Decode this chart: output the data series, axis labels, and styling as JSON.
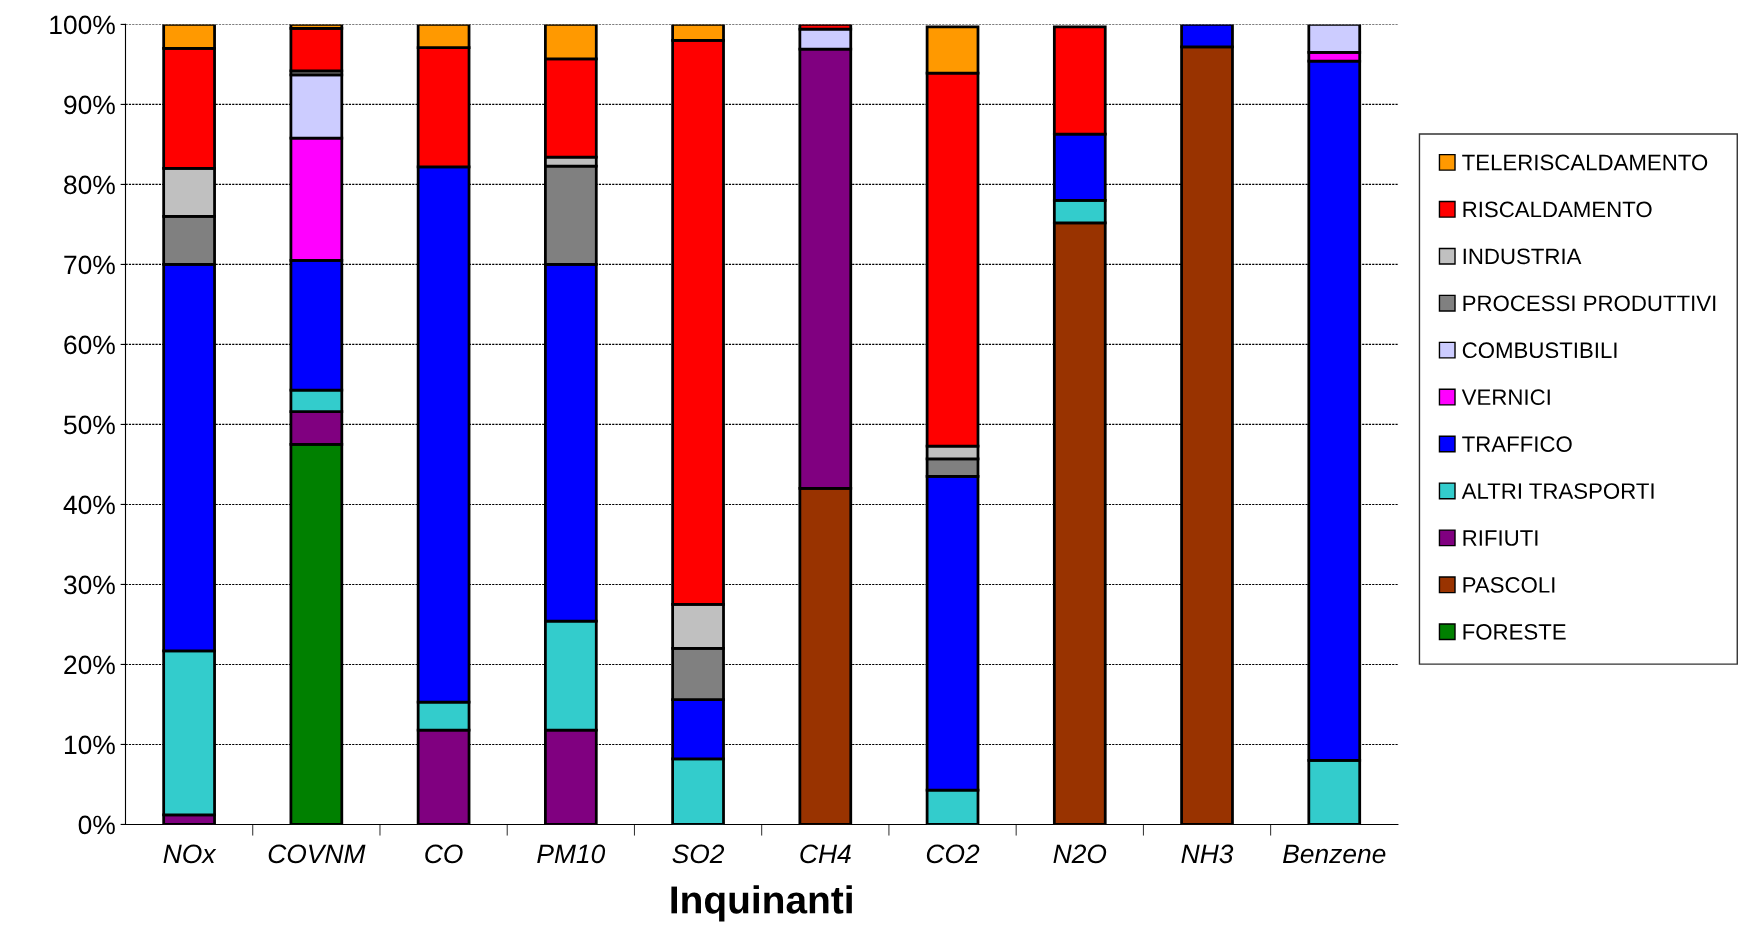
{
  "chart_data": {
    "type": "bar",
    "stacked": true,
    "xlabel": "Inquinanti",
    "categories": [
      "NOx",
      "COVNM",
      "CO",
      "PM10",
      "SO2",
      "CH4",
      "CO2",
      "N2O",
      "NH3",
      "Benzene"
    ],
    "series": [
      {
        "name": "FORESTE",
        "color": "#008000",
        "values": [
          0,
          47.5,
          0,
          0,
          0,
          0,
          0,
          0,
          0,
          0
        ]
      },
      {
        "name": "PASCOLI",
        "color": "#993300",
        "values": [
          0,
          0,
          0,
          0,
          0,
          42,
          0,
          75.2,
          97.2,
          0
        ]
      },
      {
        "name": "RIFIUTI",
        "color": "#800080",
        "values": [
          1.2,
          4.1,
          11.8,
          11.8,
          0,
          54.9,
          null,
          0,
          0,
          0
        ]
      },
      {
        "name": "ALTRI TRASPORTI",
        "color": "#33cccc",
        "values": [
          20.5,
          2.7,
          3.5,
          13.6,
          8.2,
          0,
          4.3,
          2.8,
          0,
          8
        ]
      },
      {
        "name": "TRAFFICO",
        "color": "#0000ff",
        "values": [
          48.3,
          16.2,
          66.9,
          44.6,
          7.4,
          0,
          39.2,
          8.3,
          2.8,
          87.4
        ]
      },
      {
        "name": "VERNICI",
        "color": "#ff00ff",
        "values": [
          0,
          15.3,
          0,
          0,
          0,
          0,
          0,
          0,
          0,
          1.1
        ]
      },
      {
        "name": "COMBUSTIBILI",
        "color": "#ccccff",
        "values": [
          0,
          7.9,
          0,
          0,
          0,
          2.5,
          0,
          0,
          0,
          3.5
        ]
      },
      {
        "name": "PROCESSI PRODUTTIVI",
        "color": "#808080",
        "values": [
          6,
          0.5,
          0,
          12.3,
          6.4,
          0,
          2.2,
          0,
          0,
          0
        ]
      },
      {
        "name": "INDUSTRIA",
        "color": "#c0c0c0",
        "values": [
          6,
          0,
          0,
          1.1,
          5.5,
          0,
          1.6,
          0,
          0,
          0
        ]
      },
      {
        "name": "RISCALDAMENTO",
        "color": "#ff0000",
        "values": [
          15,
          5.3,
          14.9,
          12.3,
          70.5,
          0.6,
          46.6,
          13.4,
          0,
          0
        ]
      },
      {
        "name": "TELERISCALDAMENTO",
        "color": "#ff9900",
        "values": [
          3,
          0.5,
          2.9,
          4.3,
          2,
          0,
          5.8,
          0,
          0,
          0
        ]
      }
    ],
    "ylim": [
      0,
      100
    ],
    "yticks": [
      {
        "value": 0,
        "label": "0%"
      },
      {
        "value": 10,
        "label": "10%"
      },
      {
        "value": 20,
        "label": "20%"
      },
      {
        "value": 30,
        "label": "30%"
      },
      {
        "value": 40,
        "label": "40%"
      },
      {
        "value": 50,
        "label": "50%"
      },
      {
        "value": 60,
        "label": "60%"
      },
      {
        "value": 70,
        "label": "70%"
      },
      {
        "value": 80,
        "label": "80%"
      },
      {
        "value": 90,
        "label": "90%"
      },
      {
        "value": 100,
        "label": "100%"
      }
    ],
    "grid": "y",
    "legend": "right"
  }
}
